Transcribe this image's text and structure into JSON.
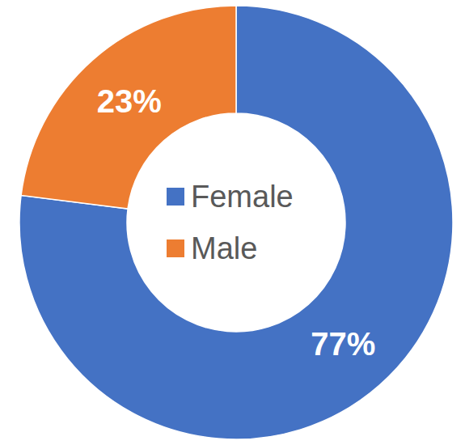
{
  "chart_data": {
    "type": "pie",
    "categories": [
      "Female",
      "Male"
    ],
    "values": [
      77,
      23
    ],
    "colors": [
      "#4472c4",
      "#ed7d31"
    ],
    "data_labels": true,
    "value_labels": [
      "77%",
      "23%"
    ],
    "legend": "center"
  }
}
